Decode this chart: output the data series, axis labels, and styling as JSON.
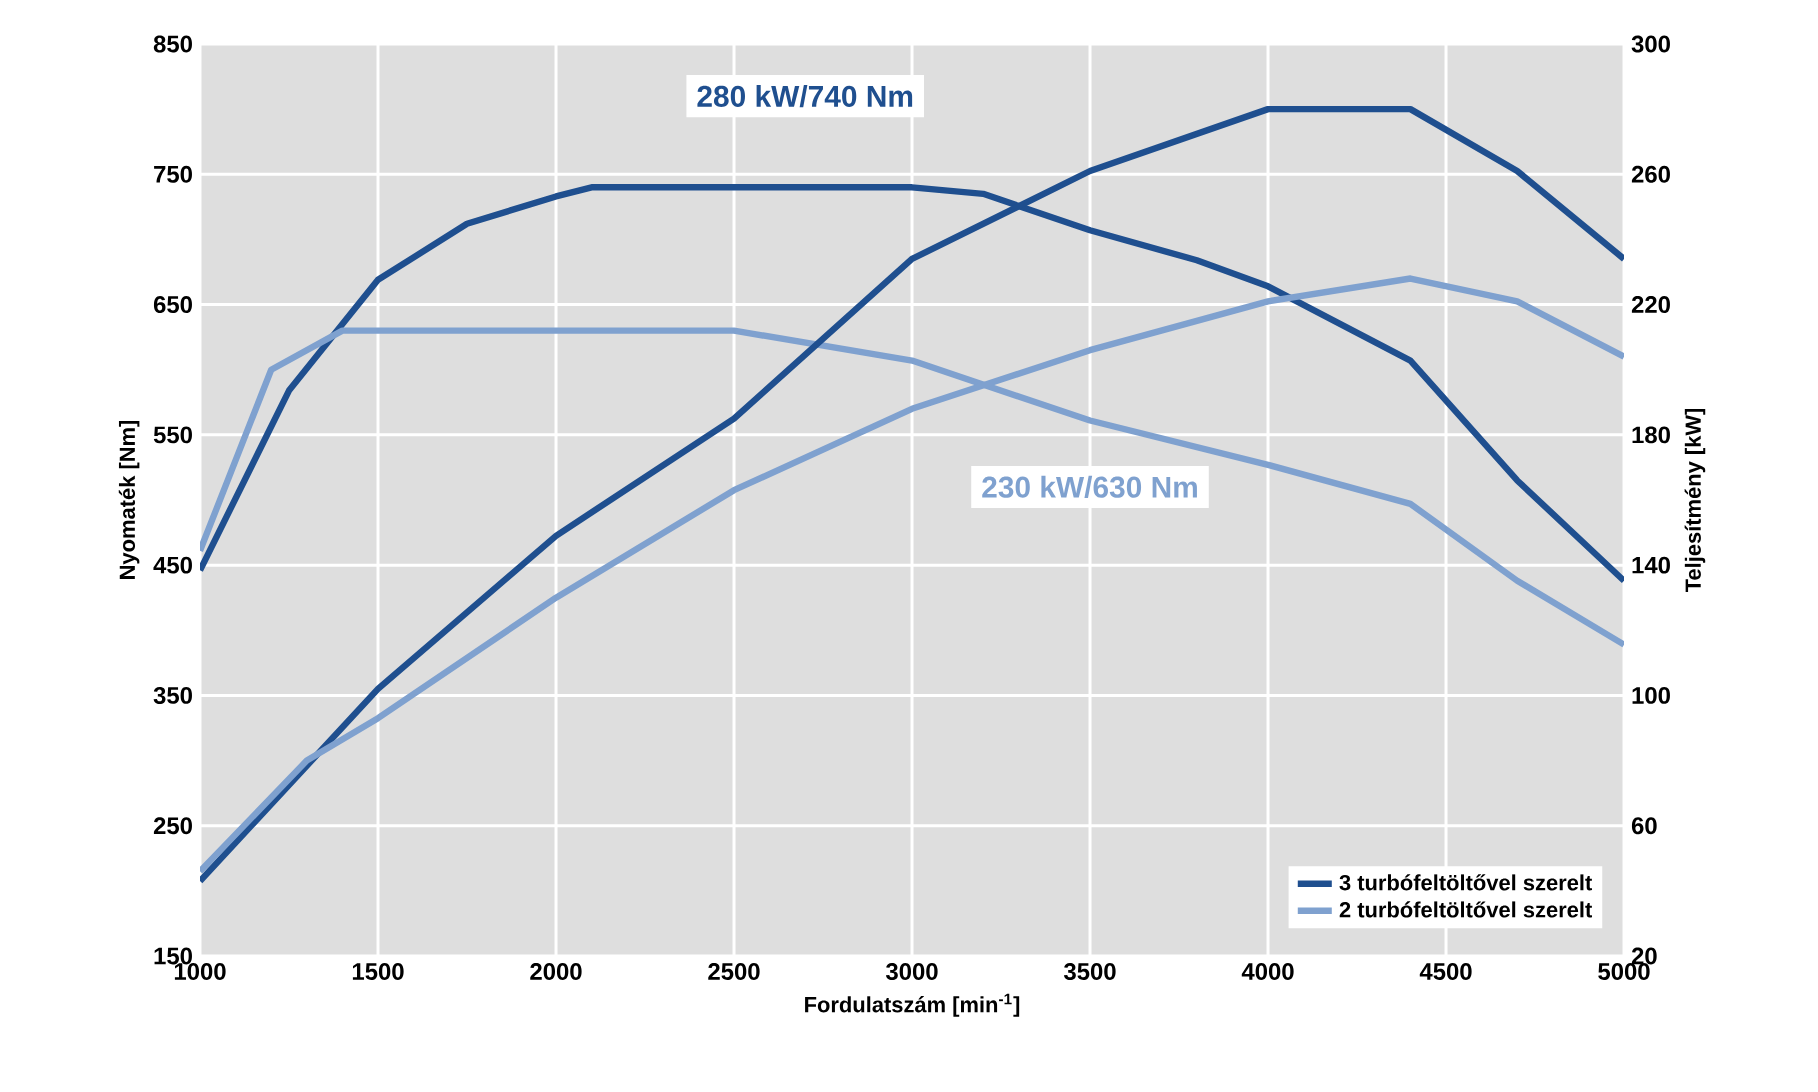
{
  "chart_data": {
    "type": "line",
    "xlabel": "Fordulatszám [min$^{-1}$]",
    "ylabel": "Nyomaték [Nm]",
    "y2label": "Teljesítmény [kW]",
    "annotations": [
      "280 kW/740 Nm",
      "230 kW/630 Nm"
    ],
    "xlim": [
      1000,
      5000
    ],
    "xticks": [
      1000,
      1500,
      2000,
      2500,
      3000,
      3500,
      4000,
      4500,
      5000
    ],
    "ylim": [
      150,
      850
    ],
    "yticks": [
      150,
      250,
      350,
      450,
      550,
      650,
      750,
      850
    ],
    "y2lim": [
      20,
      300
    ],
    "y2ticks": [
      20,
      60,
      100,
      140,
      180,
      220,
      260,
      300
    ],
    "grid": true,
    "legend": "bottom right",
    "series": [
      {
        "name": "3 turbófeltöltővel szerelt",
        "color": "#1f4f8f",
        "x": [
          1000,
          1250,
          1500,
          1750,
          2000,
          2100,
          2500,
          3000,
          3200,
          3500,
          3800,
          4000,
          4400,
          4700,
          5000
        ],
        "values": [
          446,
          584,
          669,
          712,
          733,
          740,
          740,
          740,
          735,
          707,
          684,
          664,
          607,
          515,
          438
        ]
      },
      {
        "color": "#1f4f8f",
        "axis": "y2",
        "x": [
          1000,
          1500,
          2000,
          2500,
          3000,
          3500,
          4000,
          4400,
          4700,
          5000
        ],
        "values": [
          43,
          102,
          149,
          185,
          234,
          261,
          280,
          280,
          261,
          234
        ]
      },
      {
        "name": "2 turbófeltöltővel szerelt",
        "color": "#7fa1cf",
        "x": [
          1000,
          1200,
          1400,
          2000,
          2500,
          3000,
          3500,
          4000,
          4400,
          4700,
          5000
        ],
        "values": [
          461,
          600,
          630,
          630,
          630,
          607,
          561,
          527,
          497,
          438,
          389
        ]
      },
      {
        "color": "#7fa1cf",
        "axis": "y2",
        "x": [
          1000,
          1300,
          1500,
          2000,
          2500,
          3000,
          3500,
          4000,
          4400,
          4700,
          5000
        ],
        "values": [
          46,
          80,
          93,
          130,
          163,
          188,
          206,
          221,
          228,
          221,
          204
        ]
      }
    ]
  }
}
